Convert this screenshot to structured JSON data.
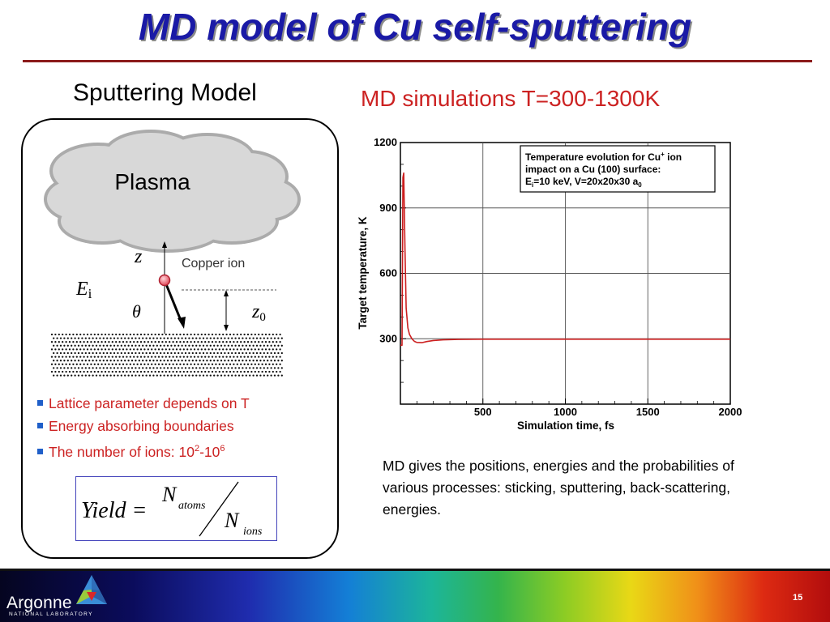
{
  "slide": {
    "title": "MD model of Cu self-sputtering",
    "left_heading": "Sputtering Model",
    "right_heading": "MD simulations T=300-1300K",
    "page_number": "15"
  },
  "sputtering_model": {
    "plasma_label": "Plasma",
    "z_label": "z",
    "copper_ion_label": "Copper ion",
    "ei_label": "E",
    "ei_subscript": "i",
    "theta_label": "θ",
    "z0_label": "z",
    "z0_subscript": "0",
    "bullets": [
      {
        "text": "Lattice parameter depends on T"
      },
      {
        "text": "Energy absorbing boundaries"
      },
      {
        "text": "The number of ions: 10",
        "sup1": "2",
        "mid": "-10",
        "sup2": "6"
      }
    ],
    "formula": {
      "lhs": "Yield =",
      "numerator": "N",
      "numerator_sub": "atoms",
      "denominator": "N",
      "denominator_sub": "ions"
    }
  },
  "chart_data": {
    "type": "line",
    "xlabel": "Simulation time, fs",
    "ylabel": "Target temperature, K",
    "xlim": [
      0,
      2000
    ],
    "ylim": [
      0,
      1200
    ],
    "x_ticks": [
      500,
      1000,
      1500,
      2000
    ],
    "y_ticks": [
      300,
      600,
      900,
      1200
    ],
    "grid": true,
    "legend_lines": [
      "Temperature evolution for Cu+ ion",
      "impact on a Cu (100) surface:",
      "Ei=10 keV, V=20x20x30 a0"
    ],
    "series": [
      {
        "color": "#cc1f1f",
        "x": [
          0,
          10,
          15,
          20,
          28,
          35,
          45,
          55,
          70,
          85,
          100,
          130,
          160,
          200,
          260,
          350,
          500,
          1000,
          1500,
          2000
        ],
        "y": [
          270,
          270,
          1040,
          1060,
          700,
          440,
          350,
          320,
          300,
          288,
          283,
          282,
          287,
          292,
          295,
          297,
          298,
          298,
          298,
          298
        ]
      }
    ]
  },
  "md_text": "MD gives the positions, energies and the probabilities of various processes: sticking, sputtering, back-scattering, energies.",
  "footer": {
    "logo_text": "Argonne",
    "logo_sub": "NATIONAL LABORATORY"
  }
}
